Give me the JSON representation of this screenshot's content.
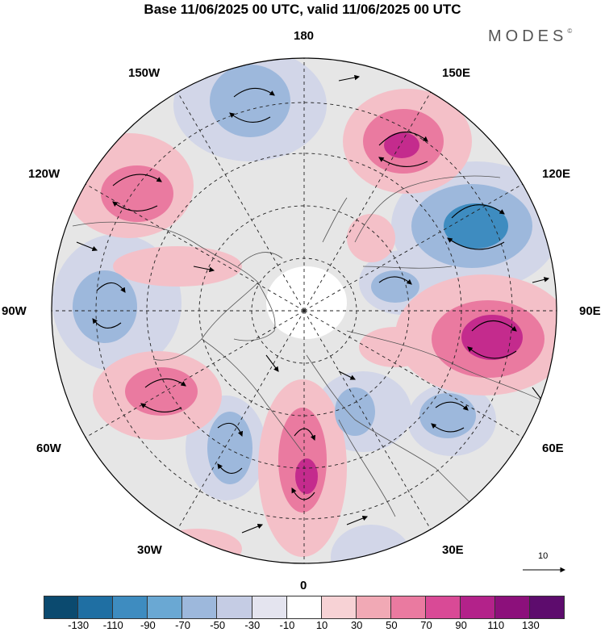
{
  "title": "Base 11/06/2025 00 UTC, valid 11/06/2025 00 UTC",
  "brand": "MODES",
  "brand_mark": "©",
  "longitude_labels": {
    "top": "180",
    "bottom": "0",
    "left": "90W",
    "right": "90E",
    "l150": "150W",
    "r150": "150E",
    "l120": "120W",
    "r120": "120E",
    "l60": "60W",
    "r60": "60E",
    "l30": "30W",
    "r30": "30E"
  },
  "vector_reference": "10",
  "colorbar": {
    "colors": [
      "#0b4a6f",
      "#1f6fa3",
      "#3e8cc0",
      "#6aa8d3",
      "#9db8dc",
      "#c5cce4",
      "#e4e4ef",
      "#ffffff",
      "#f7d2d5",
      "#f1a9b5",
      "#ea7aa0",
      "#d94a96",
      "#b3228a",
      "#8c107b",
      "#5d0c6d"
    ],
    "ticks": [
      "-130",
      "-110",
      "-90",
      "-70",
      "-50",
      "-30",
      "-10",
      "10",
      "30",
      "50",
      "70",
      "90",
      "110",
      "130"
    ]
  },
  "colors": {
    "positive_strong": "#c42b8d",
    "positive_mid": "#ea7aa0",
    "positive_light": "#f4c0c8",
    "negative_strong": "#3e8cc0",
    "negative_mid": "#9db8dc",
    "negative_light": "#d2d6e8",
    "near_zero": "#e8e8e8"
  }
}
